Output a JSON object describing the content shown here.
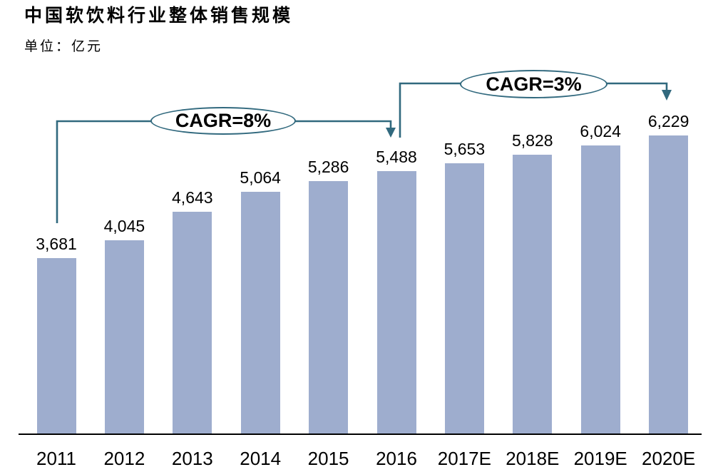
{
  "page": {
    "title": "中国软饮料行业整体销售规模",
    "unit_label": "单位：亿元"
  },
  "chart_data": {
    "type": "bar",
    "title": "中国软饮料行业整体销售规模",
    "subtitle": "单位：亿元",
    "unit": "亿元",
    "categories": [
      "2011",
      "2012",
      "2013",
      "2014",
      "2015",
      "2016",
      "2017E",
      "2018E",
      "2019E",
      "2020E"
    ],
    "values": [
      3681,
      4045,
      4643,
      5064,
      5286,
      5488,
      5653,
      5828,
      6024,
      6229
    ],
    "value_labels": [
      "3,681",
      "4,045",
      "4,643",
      "5,064",
      "5,286",
      "5,488",
      "5,653",
      "5,828",
      "6,024",
      "6,229"
    ],
    "xlabel": "",
    "ylabel": "",
    "ylim": [
      0,
      6600
    ],
    "grid": false,
    "legend_position": "none",
    "bar_color": "#9EADCE",
    "annotation_line_color": "#31697E",
    "axis_color": "#000000",
    "annotations": [
      {
        "label": "CAGR=8%",
        "from_category": "2011",
        "to_category": "2016"
      },
      {
        "label": "CAGR=3%",
        "from_category": "2016",
        "to_category": "2020E"
      }
    ]
  }
}
